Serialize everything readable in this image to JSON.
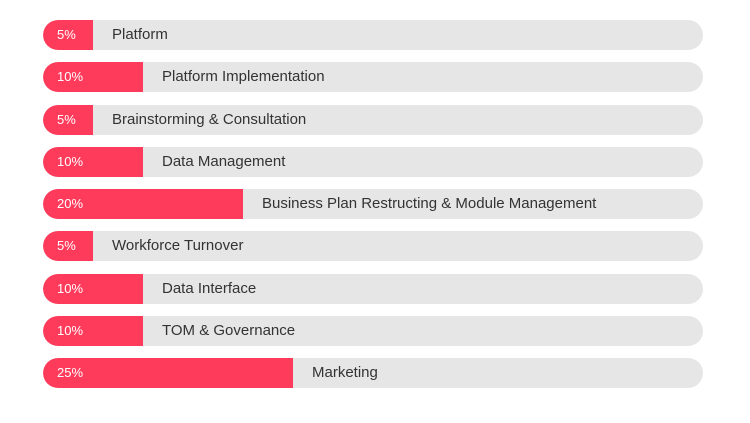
{
  "chart_data": {
    "type": "bar",
    "orientation": "horizontal",
    "categories": [
      "Platform",
      "Platform Implementation",
      "Brainstorming & Consultation",
      "Data Management",
      "Business Plan Restructing & Module Management",
      "Workforce Turnover",
      "Data Interface",
      "TOM & Governance",
      "Marketing"
    ],
    "values": [
      5,
      10,
      5,
      10,
      20,
      5,
      10,
      10,
      25
    ],
    "value_labels": [
      "5%",
      "10%",
      "5%",
      "10%",
      "20%",
      "5%",
      "10%",
      "10%",
      "25%"
    ],
    "unit": "%",
    "xlim": [
      0,
      66
    ],
    "title": "",
    "xlabel": "",
    "ylabel": "",
    "grid": false,
    "colors": {
      "fill": "#ff3b5c",
      "track": "#e6e6e6",
      "label_text": "#333333",
      "percent_text": "#ffffff"
    }
  }
}
